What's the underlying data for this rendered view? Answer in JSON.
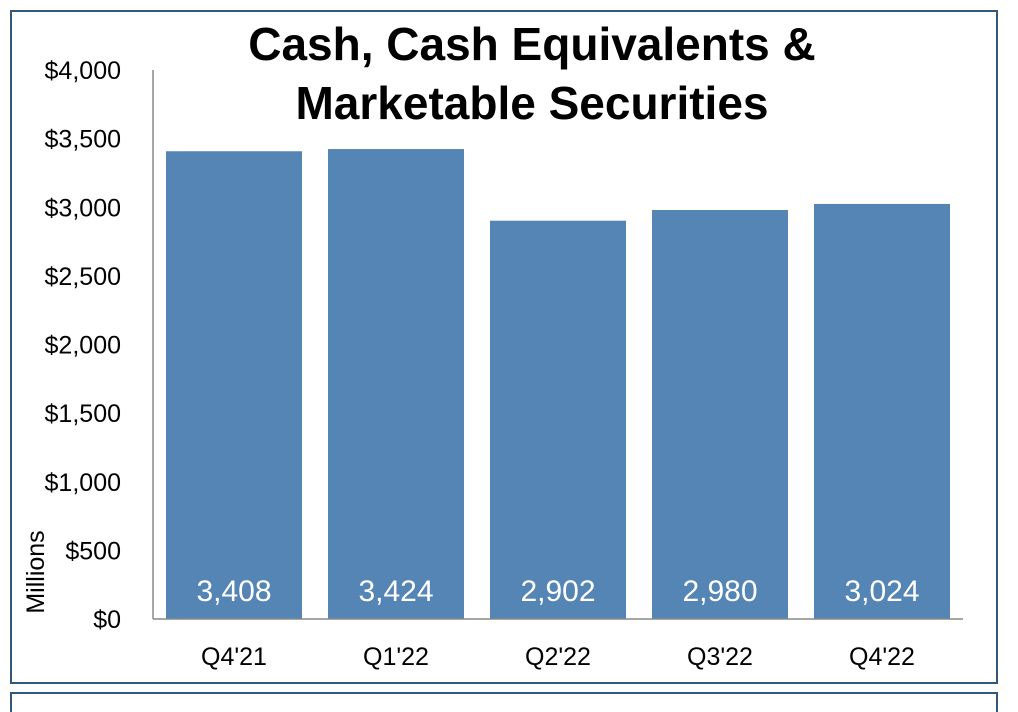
{
  "chart_data": {
    "type": "bar",
    "title": "Cash, Cash Equivalents & Marketable Securities",
    "title_lines": [
      "Cash, Cash Equivalents &",
      "Marketable Securities"
    ],
    "ylabel": "Millions",
    "xlabel": "",
    "categories": [
      "Q4'21",
      "Q1'22",
      "Q2'22",
      "Q3'22",
      "Q4'22"
    ],
    "values": [
      3408,
      3424,
      2902,
      2980,
      3024
    ],
    "value_labels": [
      "3,408",
      "3,424",
      "2,902",
      "2,980",
      "3,024"
    ],
    "ylim": [
      0,
      4000
    ],
    "yticks": [
      0,
      500,
      1000,
      1500,
      2000,
      2500,
      3000,
      3500,
      4000
    ],
    "ytick_labels": [
      "$0",
      "$500",
      "$1,000",
      "$1,500",
      "$2,000",
      "$2,500",
      "$3,000",
      "$3,500",
      "$4,000"
    ],
    "grid": false,
    "legend": "none",
    "colors": {
      "bar": "#5585b5",
      "frame": "#35587a",
      "axis": "#888888"
    }
  }
}
